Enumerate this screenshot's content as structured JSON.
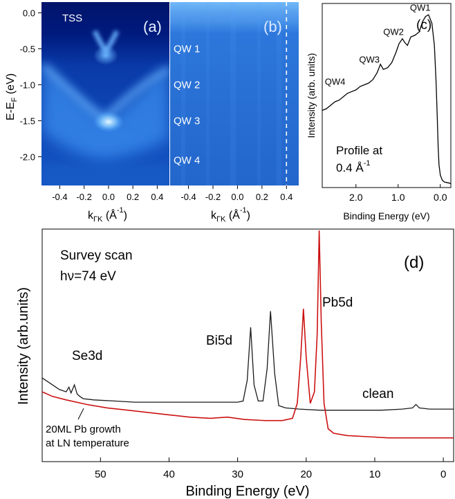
{
  "chart_data": [
    {
      "panel": "(a)",
      "type": "heatmap",
      "xlabel": "k",
      "xlabel_sub": "ΓK",
      "xlabel_unit": " (Å",
      "xlabel_unit_sup": "-1",
      "xlabel_close": ")",
      "ylabel": "E-E",
      "ylabel_sub": "F",
      "ylabel_unit": " (eV)",
      "xlim": [
        -0.55,
        0.5
      ],
      "ylim": [
        -2.4,
        0.15
      ],
      "xticks": [
        -0.4,
        -0.2,
        0.0,
        0.2,
        0.4
      ],
      "xtick_labels": [
        "-0.4",
        "-0.2",
        "0.0",
        "0.2",
        "0.4"
      ],
      "yticks": [
        0.0,
        -0.5,
        -1.0,
        -1.5,
        -2.0
      ],
      "ytick_labels": [
        "0.0",
        "-0.5",
        "-1.0",
        "-1.5",
        "-2.0"
      ],
      "annotations": [
        {
          "text": "TSS",
          "x": -0.38,
          "y": -0.12
        }
      ],
      "features": {
        "tss_upper_branch": {
          "x": [
            -0.14,
            -0.07,
            0.0,
            0.07,
            0.14
          ],
          "y": [
            -0.1,
            -0.3,
            -0.45,
            -0.3,
            -0.1
          ]
        },
        "dirac_point": {
          "x": 0.0,
          "y": -0.45
        },
        "bulk_band": {
          "x": [
            -0.45,
            -0.3,
            -0.15,
            0.03,
            0.2,
            0.35,
            0.5
          ],
          "y": [
            -0.5,
            -0.85,
            -1.2,
            -1.45,
            -1.15,
            -0.85,
            -0.55
          ]
        },
        "bright_spot": {
          "x": 0.03,
          "y": -1.45
        }
      }
    },
    {
      "panel": "(b)",
      "type": "heatmap",
      "xlabel": "k",
      "xlabel_sub": "ΓK",
      "xlabel_unit": " (Å",
      "xlabel_unit_sup": "-1",
      "xlabel_close": ")",
      "xlim": [
        -0.55,
        0.5
      ],
      "ylim": [
        -2.4,
        0.15
      ],
      "xticks": [
        -0.4,
        -0.2,
        0.0,
        0.2,
        0.4
      ],
      "xtick_labels": [
        "-0.4",
        "-0.2",
        "0.0",
        "0.2",
        "0.4"
      ],
      "vline_x": 0.4,
      "band_labels": [
        {
          "text": "QW 1",
          "y": -0.5
        },
        {
          "text": "QW 2",
          "y": -1.0
        },
        {
          "text": "QW 3",
          "y": -1.5
        },
        {
          "text": "QW 4",
          "y": -2.05
        }
      ]
    },
    {
      "panel": "(c)",
      "type": "line",
      "xlabel": "Binding Energy (eV)",
      "ylabel": "Intensity (arb. units)",
      "xlim": [
        2.8,
        -0.25
      ],
      "ylim": [
        0,
        1.05
      ],
      "xticks": [
        2.0,
        1.0,
        0.0
      ],
      "xtick_labels": [
        "2.0",
        "1.0",
        "0.0"
      ],
      "annotations_text": [
        "Profile at",
        "0.4 Å",
        "-1"
      ],
      "peaks": [
        {
          "label": "QW1",
          "x": 0.28,
          "y": 1.0
        },
        {
          "label": "QW2",
          "x": 0.88,
          "y": 0.85
        },
        {
          "label": "QW3",
          "x": 1.42,
          "y": 0.68
        },
        {
          "label": "QW4",
          "x": 2.2,
          "y": 0.55
        }
      ],
      "x": [
        2.8,
        2.7,
        2.6,
        2.5,
        2.4,
        2.3,
        2.2,
        2.1,
        2.0,
        1.9,
        1.8,
        1.7,
        1.6,
        1.5,
        1.42,
        1.35,
        1.25,
        1.15,
        1.05,
        0.98,
        0.9,
        0.85,
        0.78,
        0.7,
        0.6,
        0.5,
        0.42,
        0.35,
        0.28,
        0.2,
        0.14,
        0.1,
        0.07,
        0.05,
        0.03,
        0.0,
        -0.05,
        -0.1,
        -0.2,
        -0.25
      ],
      "y": [
        0.44,
        0.45,
        0.47,
        0.49,
        0.5,
        0.52,
        0.54,
        0.55,
        0.56,
        0.58,
        0.59,
        0.6,
        0.62,
        0.66,
        0.71,
        0.68,
        0.69,
        0.72,
        0.78,
        0.83,
        0.86,
        0.84,
        0.82,
        0.87,
        0.88,
        0.9,
        0.96,
        0.99,
        1.0,
        0.95,
        0.82,
        0.6,
        0.38,
        0.22,
        0.12,
        0.06,
        0.03,
        0.02,
        0.015,
        0.01
      ]
    },
    {
      "panel": "(d)",
      "type": "line",
      "xlabel": "Binding Energy (eV)",
      "ylabel": "Intensity (arb.units)",
      "xlim": [
        58.5,
        -1.5
      ],
      "ylim": [
        0,
        1.0
      ],
      "xticks": [
        50,
        40,
        30,
        20,
        10,
        0
      ],
      "xtick_labels": [
        "50",
        "40",
        "30",
        "20",
        "10",
        "0"
      ],
      "annotations": [
        {
          "text": "Survey scan",
          "kind": "title"
        },
        {
          "text": "hν=74 eV",
          "kind": "title"
        },
        {
          "text": "Se3d"
        },
        {
          "text": "Bi5d"
        },
        {
          "text": "Pb5d"
        },
        {
          "text": "clean"
        },
        {
          "text": "20ML Pb growth"
        },
        {
          "text": "at LN temperature"
        }
      ],
      "series": [
        {
          "name": "clean",
          "color": "#1a1a1a",
          "x": [
            58.5,
            57,
            56,
            55,
            54.6,
            54.3,
            53.8,
            53.4,
            53.0,
            52.5,
            51,
            48,
            45,
            42,
            39,
            36,
            33,
            30,
            29.2,
            28.6,
            28.1,
            27.6,
            27.0,
            26.3,
            25.7,
            25.2,
            24.6,
            24.0,
            23.0,
            21.0,
            18.0,
            15.0,
            12.0,
            9.0,
            6.0,
            4.5,
            4.0,
            3.5,
            2.0,
            0.0,
            -1.5
          ],
          "y": [
            0.36,
            0.33,
            0.31,
            0.3,
            0.32,
            0.295,
            0.33,
            0.29,
            0.28,
            0.27,
            0.265,
            0.26,
            0.255,
            0.255,
            0.255,
            0.255,
            0.255,
            0.255,
            0.26,
            0.35,
            0.58,
            0.33,
            0.26,
            0.26,
            0.4,
            0.65,
            0.38,
            0.24,
            0.23,
            0.225,
            0.22,
            0.22,
            0.22,
            0.22,
            0.225,
            0.23,
            0.245,
            0.23,
            0.225,
            0.225,
            0.225
          ]
        },
        {
          "name": "20ML Pb growth at LN temperature",
          "color": "#cc1111",
          "x": [
            58.5,
            57,
            55,
            52,
            49,
            46,
            43,
            40,
            37,
            34,
            31.5,
            29,
            26,
            23.5,
            22.0,
            21.3,
            20.8,
            20.4,
            20.0,
            19.4,
            18.8,
            18.4,
            18.1,
            17.8,
            17.4,
            16.8,
            16.0,
            14.0,
            11.0,
            8.0,
            5.0,
            2.0,
            0.0,
            -1.5
          ],
          "y": [
            0.3,
            0.28,
            0.265,
            0.245,
            0.23,
            0.22,
            0.21,
            0.2,
            0.19,
            0.185,
            0.19,
            0.18,
            0.175,
            0.175,
            0.185,
            0.25,
            0.45,
            0.66,
            0.45,
            0.25,
            0.3,
            0.55,
            1.0,
            0.6,
            0.25,
            0.14,
            0.12,
            0.11,
            0.105,
            0.1,
            0.1,
            0.1,
            0.1,
            0.1
          ]
        }
      ]
    }
  ]
}
